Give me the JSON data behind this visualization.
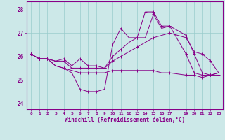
{
  "xlabel": "Windchill (Refroidissement éolien,°C)",
  "background_color": "#cce8e8",
  "grid_color": "#99cccc",
  "line_color": "#880088",
  "xlim": [
    -0.5,
    23.5
  ],
  "ylim": [
    23.75,
    28.35
  ],
  "yticks": [
    24,
    25,
    26,
    27,
    28
  ],
  "xticks": [
    0,
    1,
    2,
    3,
    4,
    5,
    6,
    7,
    8,
    9,
    10,
    11,
    12,
    13,
    14,
    15,
    16,
    17,
    19,
    20,
    21,
    22,
    23
  ],
  "series": {
    "line1": {
      "x": [
        0,
        1,
        2,
        3,
        4,
        5,
        6,
        7,
        8,
        9,
        10,
        11,
        12,
        13,
        14,
        15,
        16,
        17,
        19,
        20,
        21,
        22,
        23
      ],
      "y": [
        26.1,
        25.9,
        25.9,
        25.6,
        25.5,
        25.3,
        24.6,
        24.5,
        24.5,
        24.6,
        26.5,
        27.2,
        26.8,
        26.8,
        27.9,
        27.9,
        27.3,
        27.3,
        26.1,
        25.3,
        25.2,
        25.2,
        25.3
      ]
    },
    "line2": {
      "x": [
        0,
        1,
        2,
        3,
        4,
        5,
        6,
        7,
        8,
        9,
        10,
        11,
        12,
        13,
        14,
        15,
        16,
        17,
        19,
        20,
        21,
        22,
        23
      ],
      "y": [
        26.1,
        25.9,
        25.9,
        25.6,
        25.5,
        25.4,
        25.3,
        25.3,
        25.3,
        25.3,
        25.4,
        25.4,
        25.4,
        25.4,
        25.4,
        25.4,
        25.3,
        25.3,
        25.2,
        25.2,
        25.1,
        25.2,
        25.2
      ]
    },
    "line3": {
      "x": [
        0,
        1,
        2,
        3,
        4,
        5,
        6,
        7,
        8,
        9,
        10,
        11,
        12,
        13,
        14,
        15,
        16,
        17,
        19,
        20,
        21,
        22,
        23
      ],
      "y": [
        26.1,
        25.9,
        25.9,
        25.8,
        25.8,
        25.5,
        25.5,
        25.5,
        25.5,
        25.5,
        25.8,
        26.0,
        26.2,
        26.4,
        26.6,
        26.8,
        26.9,
        27.0,
        26.8,
        26.2,
        26.1,
        25.8,
        25.3
      ]
    },
    "line4": {
      "x": [
        0,
        1,
        2,
        3,
        4,
        5,
        6,
        7,
        8,
        9,
        10,
        11,
        12,
        13,
        14,
        15,
        16,
        17,
        19,
        20,
        21,
        22,
        23
      ],
      "y": [
        26.1,
        25.9,
        25.9,
        25.8,
        25.9,
        25.6,
        25.9,
        25.6,
        25.6,
        25.5,
        26.0,
        26.3,
        26.6,
        26.8,
        26.8,
        27.8,
        27.2,
        27.3,
        26.9,
        26.1,
        25.3,
        25.2,
        25.3
      ]
    }
  }
}
